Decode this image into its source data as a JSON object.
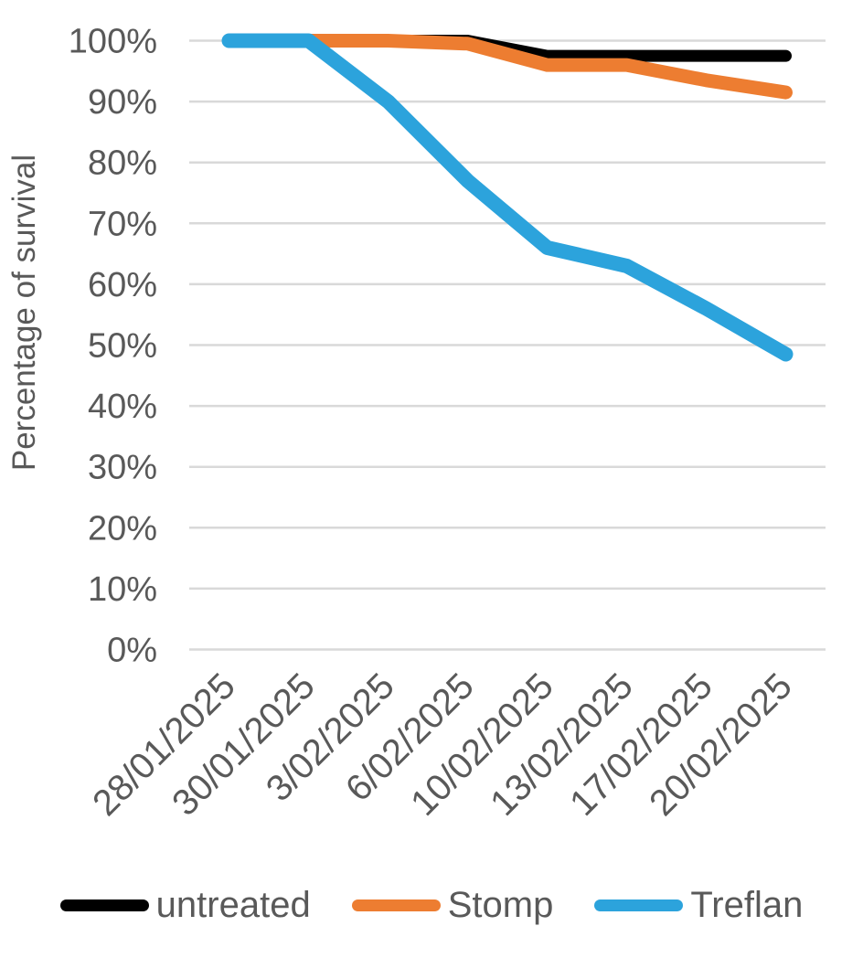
{
  "chart_data": {
    "type": "line",
    "title": "",
    "xlabel": "",
    "ylabel": "Percentage of survival",
    "categories": [
      "28/01/2025",
      "30/01/2025",
      "3/02/2025",
      "6/02/2025",
      "10/02/2025",
      "13/02/2025",
      "17/02/2025",
      "20/02/2025"
    ],
    "series": [
      {
        "name": "untreated",
        "color": "#000000",
        "values": [
          100,
          100,
          100,
          100,
          97.5,
          97.5,
          97.5,
          97.5
        ]
      },
      {
        "name": "Stomp",
        "color": "#ED7D31",
        "values": [
          100,
          100,
          100,
          99.5,
          96,
          96,
          93.5,
          91.5
        ]
      },
      {
        "name": "Treflan",
        "color": "#2CA3DC",
        "values": [
          100,
          100,
          90,
          77,
          66,
          63,
          56,
          48.5
        ]
      }
    ],
    "y_ticks": [
      "100%",
      "90%",
      "80%",
      "70%",
      "60%",
      "50%",
      "40%",
      "30%",
      "20%",
      "10%",
      "0%"
    ],
    "ylim": [
      0,
      100
    ],
    "y_tick_step": 10,
    "grid": true,
    "legend_position": "bottom",
    "axis_text_color": "#595959",
    "gridline_color": "#D9D9D9"
  }
}
